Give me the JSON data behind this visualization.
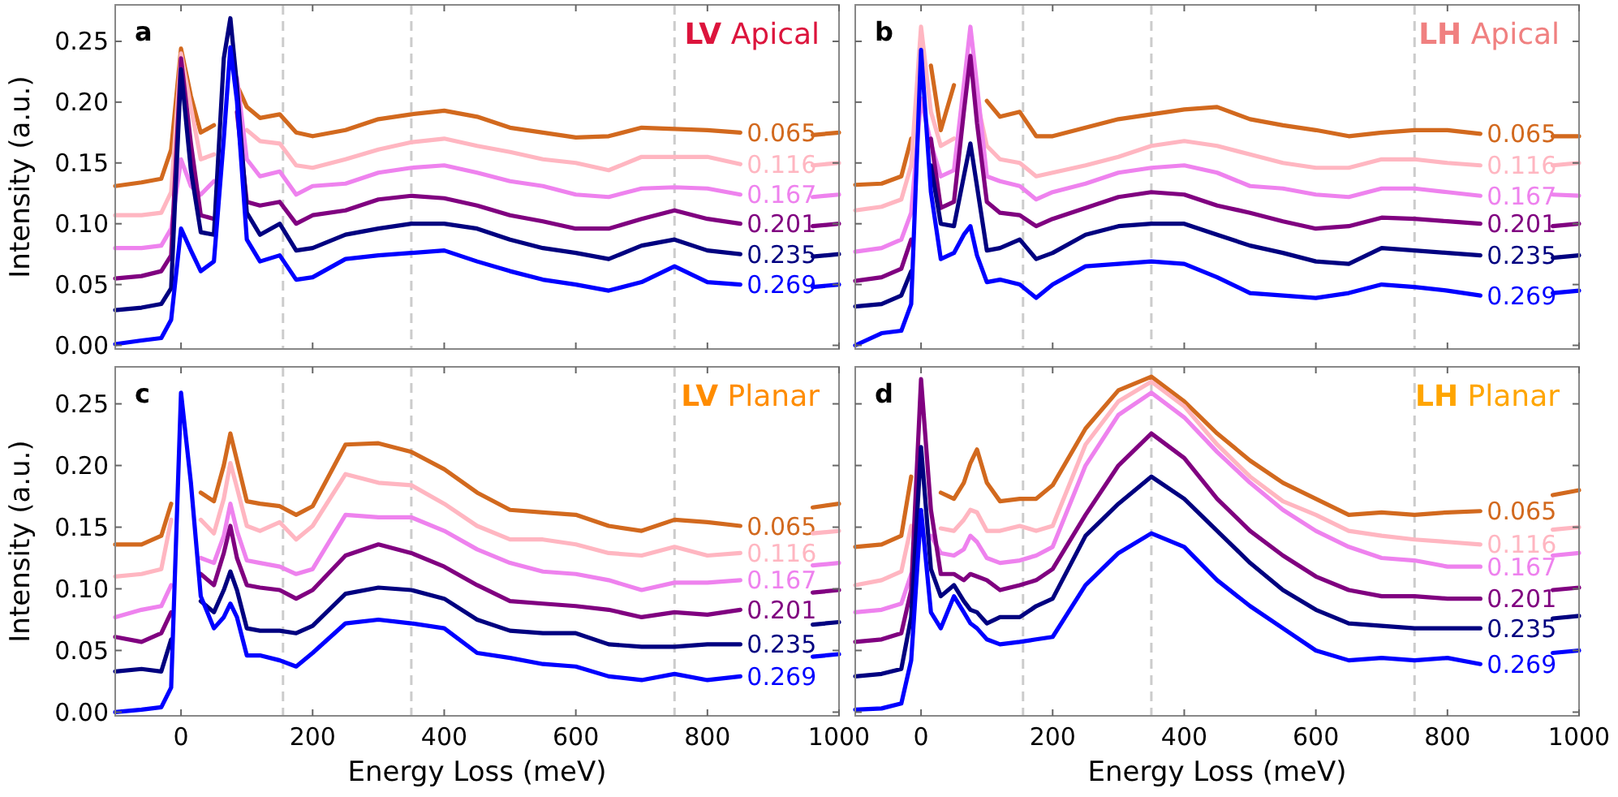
{
  "chart_data": [
    {
      "type": "line",
      "title": "LV Apical",
      "annotations": [
        "a"
      ],
      "ylabel": "Intensity (a.u.)",
      "tick_labels": "y",
      "xlim": [
        -100,
        1000
      ],
      "ylim": [
        -0.003,
        0.28
      ],
      "xticks": [
        0,
        200,
        400,
        600,
        800,
        1000
      ],
      "yticks": [
        {
          "value": 0,
          "label": "0.00"
        },
        {
          "value": 0.05,
          "label": "0.05"
        },
        {
          "value": 0.1,
          "label": "0.10"
        },
        {
          "value": 0.15,
          "label": "0.15"
        },
        {
          "value": 0.2,
          "label": "0.20"
        },
        {
          "value": 0.25,
          "label": "0.25"
        }
      ],
      "ref_lines": [
        {
          "axis": "x",
          "value": 155,
          "color": "#cccccc",
          "line_style": "dashed"
        },
        {
          "axis": "x",
          "value": 350,
          "color": "#cccccc",
          "line_style": "dashed"
        },
        {
          "axis": "x",
          "value": 750,
          "color": "#cccccc",
          "line_style": "dashed"
        }
      ],
      "x": [
        -100,
        -60,
        -30,
        -15,
        0,
        15,
        30,
        50,
        65,
        75,
        85,
        100,
        120,
        150,
        175,
        200,
        250,
        300,
        350,
        400,
        450,
        500,
        550,
        600,
        650,
        700,
        750,
        800,
        850,
        900,
        960,
        1000
      ],
      "series": [
        {
          "name": "0.065",
          "color": "#d2691e",
          "values": [
            0.131,
            0.134,
            0.137,
            0.161,
            0.244,
            0.205,
            0.175,
            0.181,
            null,
            null,
            0.214,
            0.196,
            0.187,
            0.19,
            0.175,
            0.172,
            0.177,
            0.186,
            0.19,
            0.193,
            0.188,
            0.179,
            0.175,
            0.171,
            0.172,
            0.179,
            0.178,
            0.177,
            0.175,
            null,
            0.173,
            0.175
          ]
        },
        {
          "name": "0.116",
          "color": "#ffb6c1",
          "values": [
            0.107,
            0.107,
            0.109,
            0.126,
            0.24,
            0.196,
            0.153,
            0.157,
            null,
            null,
            null,
            0.177,
            0.168,
            0.166,
            0.148,
            0.146,
            0.153,
            0.161,
            0.167,
            0.17,
            0.164,
            0.159,
            0.153,
            0.15,
            0.144,
            0.155,
            0.155,
            0.155,
            0.149,
            null,
            0.148,
            0.15
          ]
        },
        {
          "name": "0.167",
          "color": "#ee82ee",
          "values": [
            0.08,
            0.08,
            0.082,
            0.096,
            0.153,
            0.131,
            0.124,
            0.135,
            null,
            null,
            0.22,
            0.153,
            0.139,
            0.143,
            0.124,
            0.131,
            0.133,
            0.142,
            0.146,
            0.148,
            0.142,
            0.135,
            0.131,
            0.124,
            0.122,
            0.129,
            0.13,
            0.129,
            0.124,
            null,
            0.122,
            0.124
          ]
        },
        {
          "name": "0.201",
          "color": "#800080",
          "values": [
            0.055,
            0.057,
            0.061,
            0.074,
            0.236,
            0.166,
            0.107,
            0.104,
            null,
            null,
            0.192,
            0.118,
            0.115,
            0.118,
            0.1,
            0.107,
            0.111,
            0.12,
            0.123,
            0.121,
            0.115,
            0.107,
            0.102,
            0.096,
            0.096,
            0.104,
            0.111,
            0.104,
            0.1,
            null,
            0.098,
            0.1
          ]
        },
        {
          "name": "0.235",
          "color": "#000080",
          "values": [
            0.029,
            0.031,
            0.034,
            0.047,
            0.227,
            0.144,
            0.093,
            0.091,
            0.236,
            0.269,
            0.214,
            0.109,
            0.091,
            0.1,
            0.078,
            0.08,
            0.091,
            0.096,
            0.1,
            0.1,
            0.096,
            0.087,
            0.08,
            0.076,
            0.071,
            0.082,
            0.087,
            0.078,
            0.075,
            null,
            0.073,
            0.075
          ]
        },
        {
          "name": "0.269",
          "color": "#0000ff",
          "values": [
            0.001,
            0.004,
            0.006,
            0.021,
            0.096,
            0.078,
            0.061,
            0.069,
            0.17,
            0.245,
            0.201,
            0.087,
            0.069,
            0.074,
            0.054,
            0.056,
            0.071,
            0.074,
            0.076,
            0.078,
            0.069,
            0.061,
            0.054,
            0.05,
            0.045,
            0.052,
            0.065,
            0.052,
            0.05,
            null,
            0.048,
            0.05
          ]
        }
      ]
    },
    {
      "type": "line",
      "title": "LH Apical",
      "annotations": [
        "b"
      ],
      "tick_labels": false,
      "xlim": [
        -100,
        1000
      ],
      "ylim": [
        -0.003,
        0.28
      ],
      "xticks": [
        0,
        200,
        400,
        600,
        800,
        1000
      ],
      "yticks": [
        0,
        0.05,
        0.1,
        0.15,
        0.2,
        0.25
      ],
      "ref_lines": [
        {
          "axis": "x",
          "value": 155,
          "color": "#cccccc",
          "line_style": "dashed"
        },
        {
          "axis": "x",
          "value": 350,
          "color": "#cccccc",
          "line_style": "dashed"
        },
        {
          "axis": "x",
          "value": 750,
          "color": "#cccccc",
          "line_style": "dashed"
        }
      ],
      "x": [
        -100,
        -60,
        -30,
        -15,
        0,
        15,
        30,
        50,
        65,
        75,
        85,
        100,
        120,
        150,
        175,
        200,
        250,
        300,
        350,
        400,
        450,
        500,
        550,
        600,
        650,
        700,
        750,
        800,
        850,
        900,
        960,
        1000
      ],
      "series": [
        {
          "name": "0.065",
          "color": "#d2691e",
          "values": [
            0.132,
            0.133,
            0.139,
            0.17,
            null,
            0.23,
            0.177,
            0.214,
            null,
            null,
            null,
            0.201,
            0.188,
            0.192,
            0.172,
            0.172,
            0.179,
            0.186,
            0.19,
            0.194,
            0.196,
            0.186,
            0.181,
            0.177,
            0.172,
            0.175,
            0.177,
            0.177,
            0.174,
            null,
            0.172,
            0.172
          ]
        },
        {
          "name": "0.116",
          "color": "#ffb6c1",
          "values": [
            0.111,
            0.114,
            0.12,
            0.148,
            0.262,
            0.192,
            0.164,
            0.17,
            null,
            null,
            0.201,
            0.164,
            0.153,
            0.15,
            0.139,
            0.142,
            0.148,
            0.155,
            0.164,
            0.168,
            0.164,
            0.157,
            0.15,
            0.146,
            0.146,
            0.153,
            0.153,
            0.15,
            0.148,
            null,
            0.148,
            0.15
          ]
        },
        {
          "name": "0.167",
          "color": "#ee82ee",
          "values": [
            0.077,
            0.08,
            0.087,
            0.109,
            0.203,
            0.166,
            0.139,
            0.144,
            0.214,
            0.262,
            0.214,
            0.139,
            0.135,
            0.131,
            0.12,
            0.126,
            0.133,
            0.142,
            0.146,
            0.148,
            0.142,
            0.131,
            0.129,
            0.124,
            0.122,
            0.129,
            0.129,
            0.126,
            0.123,
            null,
            0.124,
            0.123
          ]
        },
        {
          "name": "0.201",
          "color": "#800080",
          "values": [
            0.053,
            0.056,
            0.063,
            0.087,
            null,
            0.17,
            0.113,
            0.118,
            0.192,
            0.238,
            0.183,
            0.118,
            0.109,
            0.107,
            0.098,
            0.104,
            0.113,
            0.122,
            0.126,
            0.124,
            0.115,
            0.109,
            0.102,
            0.096,
            0.098,
            0.105,
            0.104,
            0.102,
            0.1,
            null,
            0.098,
            0.1
          ]
        },
        {
          "name": "0.235",
          "color": "#000080",
          "values": [
            0.032,
            0.034,
            0.041,
            0.061,
            null,
            0.148,
            0.1,
            0.098,
            0.139,
            0.166,
            0.131,
            0.078,
            0.08,
            0.087,
            0.071,
            0.076,
            0.091,
            0.098,
            0.1,
            0.1,
            0.091,
            0.082,
            0.076,
            0.069,
            0.067,
            0.08,
            0.078,
            0.076,
            0.074,
            null,
            0.072,
            0.074
          ]
        },
        {
          "name": "0.269",
          "color": "#0000ff",
          "values": [
            0.0,
            0.01,
            0.012,
            0.034,
            0.243,
            0.126,
            0.071,
            0.076,
            0.091,
            0.098,
            0.074,
            0.052,
            0.054,
            0.05,
            0.039,
            0.05,
            0.065,
            0.067,
            0.069,
            0.067,
            0.056,
            0.043,
            0.041,
            0.039,
            0.043,
            0.05,
            0.048,
            0.045,
            0.041,
            null,
            0.043,
            0.045
          ]
        }
      ]
    },
    {
      "type": "line",
      "title": "LV Planar",
      "annotations": [
        "c"
      ],
      "xlabel": "Energy Loss (meV)",
      "ylabel": "Intensity (a.u.)",
      "xlim": [
        -100,
        1000
      ],
      "ylim": [
        -0.003,
        0.28
      ],
      "xticks": [
        0,
        200,
        400,
        600,
        800,
        1000
      ],
      "yticks": [
        {
          "value": 0,
          "label": "0.00"
        },
        {
          "value": 0.05,
          "label": "0.05"
        },
        {
          "value": 0.1,
          "label": "0.10"
        },
        {
          "value": 0.15,
          "label": "0.15"
        },
        {
          "value": 0.2,
          "label": "0.20"
        },
        {
          "value": 0.25,
          "label": "0.25"
        }
      ],
      "ref_lines": [
        {
          "axis": "x",
          "value": 155,
          "color": "#cccccc",
          "line_style": "dashed"
        },
        {
          "axis": "x",
          "value": 350,
          "color": "#cccccc",
          "line_style": "dashed"
        },
        {
          "axis": "x",
          "value": 750,
          "color": "#cccccc",
          "line_style": "dashed"
        }
      ],
      "x": [
        -100,
        -60,
        -30,
        -15,
        0,
        15,
        30,
        50,
        65,
        75,
        85,
        100,
        120,
        150,
        175,
        200,
        250,
        300,
        350,
        400,
        450,
        500,
        550,
        600,
        650,
        700,
        750,
        800,
        850,
        900,
        960,
        1000
      ],
      "series": [
        {
          "name": "0.065",
          "color": "#d2691e",
          "values": [
            0.136,
            0.136,
            0.143,
            0.169,
            null,
            null,
            0.178,
            0.171,
            0.2,
            0.226,
            0.204,
            0.171,
            0.169,
            0.167,
            0.16,
            0.167,
            0.217,
            0.218,
            0.211,
            0.197,
            0.178,
            0.164,
            0.162,
            0.16,
            0.151,
            0.147,
            0.156,
            0.154,
            0.151,
            null,
            0.166,
            0.169
          ]
        },
        {
          "name": "0.116",
          "color": "#ffb6c1",
          "values": [
            0.11,
            0.112,
            0.116,
            0.156,
            null,
            null,
            0.156,
            0.145,
            0.173,
            0.202,
            0.182,
            0.151,
            0.147,
            0.154,
            0.14,
            0.151,
            0.193,
            0.186,
            0.184,
            0.169,
            0.151,
            0.14,
            0.14,
            0.136,
            0.129,
            0.127,
            0.134,
            0.127,
            0.129,
            null,
            0.145,
            0.147
          ]
        },
        {
          "name": "0.167",
          "color": "#ee82ee",
          "values": [
            0.077,
            0.083,
            0.086,
            0.103,
            null,
            null,
            0.125,
            0.121,
            0.143,
            0.169,
            0.147,
            0.123,
            0.121,
            0.118,
            0.112,
            0.116,
            0.16,
            0.158,
            0.158,
            0.147,
            0.132,
            0.121,
            0.114,
            0.112,
            0.107,
            0.099,
            0.105,
            0.105,
            0.107,
            null,
            0.119,
            0.121
          ]
        },
        {
          "name": "0.201",
          "color": "#800080",
          "values": [
            0.061,
            0.057,
            0.064,
            0.081,
            null,
            null,
            0.112,
            0.103,
            0.129,
            0.151,
            0.125,
            0.103,
            0.101,
            0.099,
            0.092,
            0.099,
            0.127,
            0.136,
            0.129,
            0.118,
            0.103,
            0.09,
            0.088,
            0.086,
            0.083,
            0.077,
            0.081,
            0.079,
            0.083,
            null,
            0.097,
            0.099
          ]
        },
        {
          "name": "0.235",
          "color": "#000080",
          "values": [
            0.033,
            0.035,
            0.033,
            0.059,
            null,
            null,
            0.09,
            0.081,
            0.099,
            0.114,
            0.099,
            0.068,
            0.066,
            0.066,
            0.064,
            0.07,
            0.096,
            0.101,
            0.099,
            0.092,
            0.075,
            0.066,
            0.064,
            0.064,
            0.055,
            0.053,
            0.053,
            0.055,
            0.055,
            null,
            0.071,
            0.073
          ]
        },
        {
          "name": "0.269",
          "color": "#0000ff",
          "values": [
            0.0,
            0.002,
            0.004,
            0.02,
            0.259,
            0.186,
            0.094,
            0.068,
            0.077,
            0.088,
            0.077,
            0.046,
            0.046,
            0.042,
            0.037,
            0.048,
            0.072,
            0.075,
            0.072,
            0.068,
            0.048,
            0.044,
            0.039,
            0.037,
            0.029,
            0.026,
            0.031,
            0.026,
            0.029,
            null,
            0.045,
            0.047
          ]
        }
      ]
    },
    {
      "type": "line",
      "title": "LH Planar",
      "annotations": [
        "d"
      ],
      "xlabel": "Energy Loss (meV)",
      "tick_labels": "x",
      "xlim": [
        -100,
        1000
      ],
      "ylim": [
        -0.003,
        0.28
      ],
      "xticks": [
        0,
        200,
        400,
        600,
        800,
        1000
      ],
      "yticks": [
        0,
        0.05,
        0.1,
        0.15,
        0.2,
        0.25
      ],
      "ref_lines": [
        {
          "axis": "x",
          "value": 155,
          "color": "#cccccc",
          "line_style": "dashed"
        },
        {
          "axis": "x",
          "value": 350,
          "color": "#cccccc",
          "line_style": "dashed"
        },
        {
          "axis": "x",
          "value": 750,
          "color": "#cccccc",
          "line_style": "dashed"
        }
      ],
      "x": [
        -100,
        -60,
        -30,
        -15,
        0,
        15,
        30,
        50,
        65,
        75,
        85,
        100,
        120,
        150,
        175,
        200,
        250,
        300,
        350,
        400,
        450,
        500,
        550,
        600,
        650,
        700,
        750,
        800,
        850,
        900,
        960,
        1000
      ],
      "series": [
        {
          "name": "0.065",
          "color": "#d2691e",
          "values": [
            0.134,
            0.136,
            0.143,
            0.191,
            null,
            null,
            0.178,
            0.173,
            0.186,
            0.202,
            0.213,
            0.186,
            0.171,
            0.173,
            0.173,
            0.184,
            0.23,
            0.261,
            0.272,
            0.252,
            0.226,
            0.204,
            0.186,
            0.173,
            0.16,
            0.162,
            0.16,
            0.162,
            0.163,
            null,
            0.176,
            0.18
          ]
        },
        {
          "name": "0.116",
          "color": "#ffb6c1",
          "values": [
            0.103,
            0.107,
            0.114,
            0.151,
            null,
            null,
            0.149,
            0.147,
            0.156,
            0.164,
            0.162,
            0.147,
            0.147,
            0.151,
            0.147,
            0.151,
            0.217,
            0.252,
            0.268,
            0.248,
            0.217,
            0.191,
            0.171,
            0.16,
            0.147,
            0.143,
            0.14,
            0.138,
            0.136,
            null,
            0.148,
            0.15
          ]
        },
        {
          "name": "0.167",
          "color": "#ee82ee",
          "values": [
            0.081,
            0.083,
            0.088,
            0.112,
            null,
            0.143,
            0.129,
            0.127,
            0.132,
            0.143,
            0.138,
            0.125,
            0.121,
            0.123,
            0.127,
            0.134,
            0.2,
            0.241,
            0.259,
            0.239,
            0.211,
            0.186,
            0.164,
            0.147,
            0.134,
            0.125,
            0.123,
            0.118,
            0.118,
            null,
            0.127,
            0.129
          ]
        },
        {
          "name": "0.201",
          "color": "#800080",
          "values": [
            0.057,
            0.059,
            0.064,
            0.099,
            0.27,
            0.164,
            0.112,
            0.112,
            0.107,
            0.112,
            0.11,
            0.107,
            0.099,
            0.103,
            0.107,
            0.116,
            0.16,
            0.2,
            0.226,
            0.206,
            0.173,
            0.147,
            0.127,
            0.11,
            0.099,
            0.094,
            0.094,
            0.092,
            0.092,
            null,
            0.099,
            0.101
          ]
        },
        {
          "name": "0.235",
          "color": "#000080",
          "values": [
            0.029,
            0.031,
            0.035,
            0.077,
            0.215,
            0.116,
            0.094,
            0.103,
            0.09,
            0.083,
            0.081,
            0.072,
            0.077,
            0.077,
            0.086,
            0.092,
            0.143,
            0.169,
            0.191,
            0.173,
            0.147,
            0.121,
            0.099,
            0.083,
            0.072,
            0.07,
            0.068,
            0.068,
            0.068,
            null,
            0.076,
            0.078
          ]
        },
        {
          "name": "0.269",
          "color": "#0000ff",
          "values": [
            0.002,
            0.003,
            0.007,
            0.042,
            0.164,
            0.081,
            0.068,
            0.094,
            0.081,
            0.072,
            0.068,
            0.059,
            0.055,
            0.057,
            0.059,
            0.061,
            0.103,
            0.129,
            0.145,
            0.134,
            0.107,
            0.086,
            0.068,
            0.05,
            0.042,
            0.044,
            0.042,
            0.044,
            0.039,
            null,
            0.048,
            0.05
          ]
        }
      ]
    }
  ]
}
